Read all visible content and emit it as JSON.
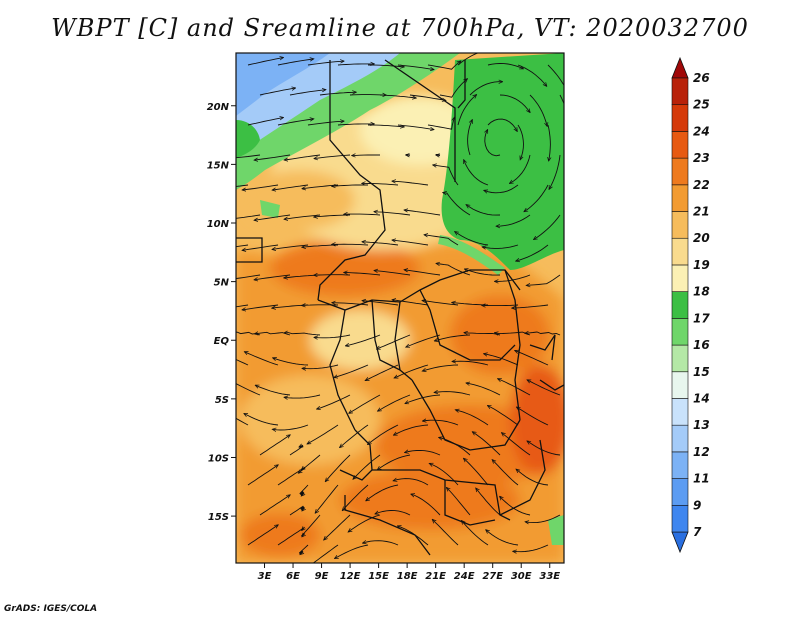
{
  "title": "WBPT [C] and Sreamline at 700hPa, VT: 2020032700",
  "credit": "GrADS: IGES/COLA",
  "map": {
    "lon_range": [
      0,
      34.5
    ],
    "lat_range": [
      -19,
      24.5
    ],
    "lon_ticks": [
      {
        "value": 3,
        "label": "3E"
      },
      {
        "value": 6,
        "label": "6E"
      },
      {
        "value": 9,
        "label": "9E"
      },
      {
        "value": 12,
        "label": "12E"
      },
      {
        "value": 15,
        "label": "15E"
      },
      {
        "value": 18,
        "label": "18E"
      },
      {
        "value": 21,
        "label": "21E"
      },
      {
        "value": 24,
        "label": "24E"
      },
      {
        "value": 27,
        "label": "27E"
      },
      {
        "value": 30,
        "label": "30E"
      },
      {
        "value": 33,
        "label": "33E"
      }
    ],
    "lat_ticks": [
      {
        "value": 20,
        "label": "20N"
      },
      {
        "value": 15,
        "label": "15N"
      },
      {
        "value": 10,
        "label": "10N"
      },
      {
        "value": 5,
        "label": "5N"
      },
      {
        "value": 0,
        "label": "EQ"
      },
      {
        "value": -5,
        "label": "5S"
      },
      {
        "value": -10,
        "label": "10S"
      },
      {
        "value": -15,
        "label": "15S"
      }
    ],
    "fields": "shaded wet-bulb potential temperature with streamlines and country boundaries"
  },
  "colorbar": {
    "levels": [
      "7",
      "9",
      "11",
      "12",
      "13",
      "14",
      "15",
      "16",
      "17",
      "18",
      "19",
      "20",
      "21",
      "22",
      "23",
      "24",
      "25",
      "26"
    ],
    "colors": [
      "#2a6fe0",
      "#3f86ef",
      "#5c9cf2",
      "#7cb2f5",
      "#a4cbf8",
      "#c9e2fb",
      "#e8f6ee",
      "#b4e8a6",
      "#6fd66a",
      "#3cbf44",
      "#fbf0b4",
      "#f9db8e",
      "#f6bc5c",
      "#f29b32",
      "#ee7a1e",
      "#e75a12",
      "#d53a0a",
      "#b8220a",
      "#a00808"
    ]
  }
}
